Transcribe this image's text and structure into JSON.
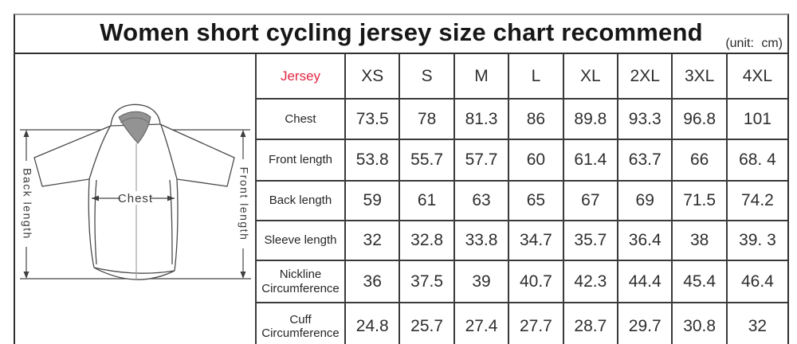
{
  "title": "Women short cycling jersey size chart recommend",
  "unit_label": "(unit: cm)",
  "colors": {
    "header_accent": "#e12744",
    "grid_line": "#3a3a3a",
    "collar_fill": "#939393"
  },
  "diagram": {
    "back_length_label": "Back length",
    "front_length_label": "Front length",
    "chest_label": "Chest"
  },
  "table": {
    "header": {
      "label": "Jersey",
      "sizes": [
        "XS",
        "S",
        "M",
        "L",
        "XL",
        "2XL",
        "3XL",
        "4XL"
      ]
    },
    "rows": [
      {
        "label": "Chest",
        "values": [
          "73.5",
          "78",
          "81.3",
          "86",
          "89.8",
          "93.3",
          "96.8",
          "101"
        ]
      },
      {
        "label": "Front length",
        "values": [
          "53.8",
          "55.7",
          "57.7",
          "60",
          "61.4",
          "63.7",
          "66",
          "68. 4"
        ]
      },
      {
        "label": "Back length",
        "values": [
          "59",
          "61",
          "63",
          "65",
          "67",
          "69",
          "71.5",
          "74.2"
        ]
      },
      {
        "label": "Sleeve length",
        "values": [
          "32",
          "32.8",
          "33.8",
          "34.7",
          "35.7",
          "36.4",
          "38",
          "39. 3"
        ]
      },
      {
        "label": "Nickline Circumference",
        "values": [
          "36",
          "37.5",
          "39",
          "40.7",
          "42.3",
          "44.4",
          "45.4",
          "46.4"
        ]
      },
      {
        "label": "Cuff Circumference",
        "values": [
          "24.8",
          "25.7",
          "27.4",
          "27.7",
          "28.7",
          "29.7",
          "30.8",
          "32"
        ]
      }
    ]
  }
}
